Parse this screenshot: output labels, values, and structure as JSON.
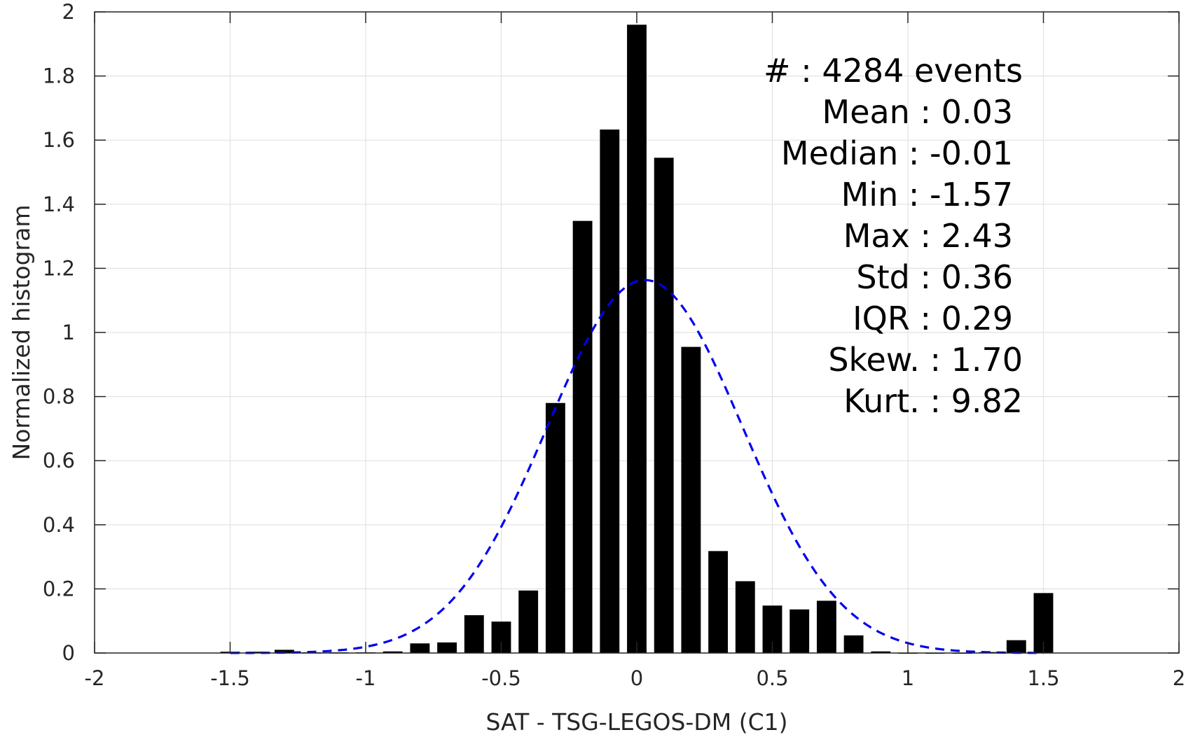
{
  "chart_data": {
    "type": "bar",
    "xlabel": "SAT - TSG-LEGOS-DM (C1)",
    "ylabel": "Normalized histogram",
    "xlim": [
      -2,
      2
    ],
    "ylim": [
      0,
      2
    ],
    "xticks": [
      -2,
      -1.5,
      -1,
      -0.5,
      0,
      0.5,
      1,
      1.5,
      2
    ],
    "xtick_labels": [
      "-2",
      "-1.5",
      "-1",
      "-0.5",
      "0",
      "0.5",
      "1",
      "1.5",
      "2"
    ],
    "yticks": [
      0,
      0.2,
      0.4,
      0.6,
      0.8,
      1,
      1.2,
      1.4,
      1.6,
      1.8,
      2
    ],
    "ytick_labels": [
      "0",
      "0.2",
      "0.4",
      "0.6",
      "0.8",
      "1",
      "1.2",
      "1.4",
      "1.6",
      "1.8",
      "2"
    ],
    "grid": true,
    "bin_width": 0.1,
    "bar_color": "#000000",
    "bars": [
      {
        "x": -1.5,
        "y": 0.004
      },
      {
        "x": -1.4,
        "y": 0.004
      },
      {
        "x": -1.3,
        "y": 0.01
      },
      {
        "x": -1.2,
        "y": 0.002
      },
      {
        "x": -1.1,
        "y": 0.002
      },
      {
        "x": -1.0,
        "y": 0.002
      },
      {
        "x": -0.9,
        "y": 0.005
      },
      {
        "x": -0.8,
        "y": 0.03
      },
      {
        "x": -0.7,
        "y": 0.033
      },
      {
        "x": -0.6,
        "y": 0.118
      },
      {
        "x": -0.5,
        "y": 0.098
      },
      {
        "x": -0.4,
        "y": 0.195
      },
      {
        "x": -0.3,
        "y": 0.78
      },
      {
        "x": -0.2,
        "y": 1.348
      },
      {
        "x": -0.1,
        "y": 1.633
      },
      {
        "x": 0.0,
        "y": 1.96
      },
      {
        "x": 0.1,
        "y": 1.545
      },
      {
        "x": 0.2,
        "y": 0.955
      },
      {
        "x": 0.3,
        "y": 0.318
      },
      {
        "x": 0.4,
        "y": 0.224
      },
      {
        "x": 0.5,
        "y": 0.148
      },
      {
        "x": 0.6,
        "y": 0.136
      },
      {
        "x": 0.7,
        "y": 0.163
      },
      {
        "x": 0.8,
        "y": 0.055
      },
      {
        "x": 0.9,
        "y": 0.005
      },
      {
        "x": 1.0,
        "y": 0.001
      },
      {
        "x": 1.1,
        "y": 0.001
      },
      {
        "x": 1.2,
        "y": 0.001
      },
      {
        "x": 1.3,
        "y": 0.003
      },
      {
        "x": 1.4,
        "y": 0.04
      },
      {
        "x": 1.5,
        "y": 0.187
      }
    ],
    "fit_curve": {
      "style": "dashed",
      "color": "#0000ee",
      "mean": 0.03,
      "std": 0.36,
      "x_range": [
        -1.5,
        1.5
      ]
    },
    "annotation_lines": [
      "#  : 4284 events",
      "Mean : 0.03",
      "Median : -0.01",
      "Min : -1.57",
      "Max : 2.43",
      "Std : 0.36",
      "IQR : 0.29",
      "Skew. : 1.70",
      "Kurt. : 9.82"
    ]
  }
}
